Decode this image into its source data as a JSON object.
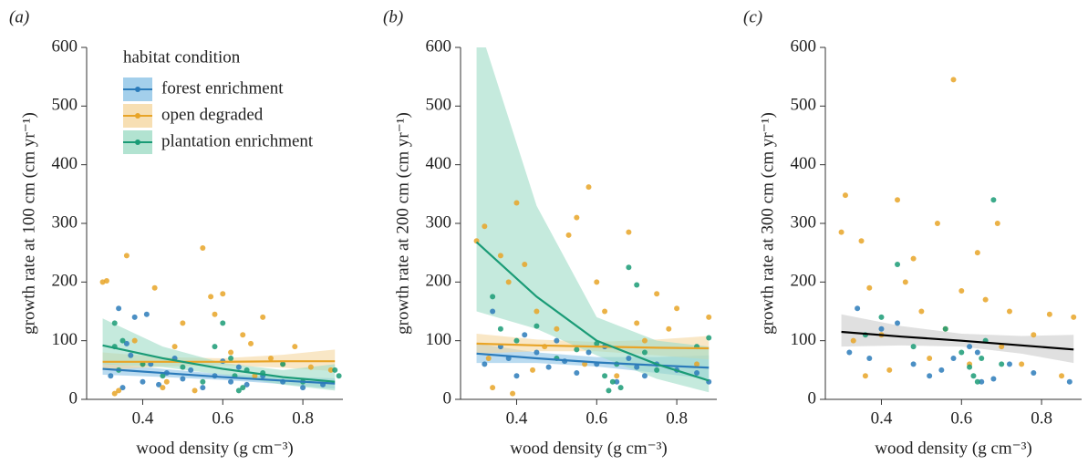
{
  "chart_data": [
    {
      "type": "scatter",
      "panel": "(a)",
      "ylabel": "growth rate at 100 cm (cm yr⁻¹)",
      "xlabel": "wood density (g cm⁻³)",
      "xlim": [
        0.26,
        0.9
      ],
      "ylim": [
        0,
        600
      ],
      "xticks": [
        0.4,
        0.6,
        0.8
      ],
      "yticks": [
        0,
        100,
        200,
        300,
        400,
        500,
        600
      ],
      "legend_title": "habitat condition",
      "legend": "upper left",
      "series": [
        {
          "name": "forest enrichment",
          "color": "#2b7bba",
          "band_color": "#8cc3e6",
          "x": [
            0.32,
            0.34,
            0.35,
            0.37,
            0.38,
            0.4,
            0.42,
            0.44,
            0.46,
            0.48,
            0.5,
            0.52,
            0.55,
            0.58,
            0.6,
            0.62,
            0.64,
            0.66,
            0.7,
            0.75,
            0.8,
            0.85,
            0.36,
            0.41
          ],
          "values": [
            40,
            155,
            20,
            75,
            140,
            30,
            60,
            25,
            45,
            70,
            35,
            50,
            20,
            40,
            65,
            30,
            55,
            25,
            40,
            30,
            20,
            25,
            95,
            145
          ],
          "fit": {
            "x": [
              0.3,
              0.45,
              0.6,
              0.75,
              0.88
            ],
            "values": [
              52,
              45,
              38,
              32,
              27
            ],
            "lower": [
              42,
              38,
              33,
              26,
              18
            ],
            "upper": [
              62,
              52,
              43,
              38,
              36
            ]
          }
        },
        {
          "name": "open degraded",
          "color": "#e8a427",
          "band_color": "#f5d7a0",
          "x": [
            0.3,
            0.31,
            0.33,
            0.36,
            0.38,
            0.4,
            0.43,
            0.45,
            0.48,
            0.5,
            0.53,
            0.55,
            0.57,
            0.6,
            0.62,
            0.65,
            0.67,
            0.7,
            0.72,
            0.75,
            0.78,
            0.82,
            0.87,
            0.34,
            0.46,
            0.58,
            0.68
          ],
          "values": [
            200,
            202,
            10,
            245,
            100,
            60,
            190,
            20,
            90,
            130,
            15,
            258,
            175,
            180,
            80,
            110,
            95,
            140,
            70,
            60,
            90,
            55,
            50,
            15,
            30,
            145,
            40
          ],
          "fit": {
            "x": [
              0.3,
              0.45,
              0.6,
              0.75,
              0.88
            ],
            "values": [
              64,
              64,
              64,
              65,
              65
            ],
            "lower": [
              50,
              56,
              58,
              54,
              48
            ],
            "upper": [
              80,
              72,
              70,
              76,
              85
            ]
          }
        },
        {
          "name": "plantation enrichment",
          "color": "#1a9b76",
          "band_color": "#9fdcc6",
          "x": [
            0.33,
            0.33,
            0.34,
            0.35,
            0.4,
            0.45,
            0.5,
            0.55,
            0.58,
            0.6,
            0.62,
            0.63,
            0.64,
            0.65,
            0.66,
            0.7,
            0.75,
            0.8,
            0.88,
            0.89
          ],
          "values": [
            130,
            90,
            50,
            100,
            60,
            40,
            55,
            30,
            90,
            130,
            70,
            40,
            15,
            20,
            50,
            45,
            60,
            30,
            50,
            40
          ],
          "fit": {
            "x": [
              0.3,
              0.45,
              0.6,
              0.75,
              0.88
            ],
            "values": [
              92,
              70,
              52,
              38,
              30
            ],
            "lower": [
              60,
              55,
              42,
              25,
              15
            ],
            "upper": [
              138,
              90,
              62,
              50,
              60
            ]
          }
        }
      ]
    },
    {
      "type": "scatter",
      "panel": "(b)",
      "ylabel": "growth rate at 200 cm (cm yr⁻¹)",
      "xlabel": "wood density (g cm⁻³)",
      "xlim": [
        0.26,
        0.9
      ],
      "ylim": [
        0,
        600
      ],
      "xticks": [
        0.4,
        0.6,
        0.8
      ],
      "yticks": [
        0,
        100,
        200,
        300,
        400,
        500,
        600
      ],
      "series": [
        {
          "color": "#2b7bba",
          "band_color": "#8cc3e6",
          "x": [
            0.32,
            0.34,
            0.36,
            0.38,
            0.4,
            0.42,
            0.45,
            0.48,
            0.5,
            0.52,
            0.55,
            0.58,
            0.6,
            0.62,
            0.65,
            0.68,
            0.7,
            0.72,
            0.75,
            0.8,
            0.85,
            0.88
          ],
          "values": [
            60,
            150,
            90,
            70,
            40,
            110,
            80,
            55,
            100,
            65,
            45,
            80,
            60,
            90,
            30,
            70,
            55,
            40,
            60,
            50,
            45,
            30
          ],
          "fit": {
            "x": [
              0.3,
              0.45,
              0.6,
              0.75,
              0.88
            ],
            "values": [
              78,
              70,
              63,
              58,
              54
            ],
            "lower": [
              62,
              62,
              56,
              45,
              35
            ],
            "upper": [
              95,
              80,
              72,
              72,
              75
            ]
          }
        },
        {
          "color": "#e8a427",
          "band_color": "#f5d7a0",
          "x": [
            0.3,
            0.32,
            0.34,
            0.36,
            0.38,
            0.4,
            0.42,
            0.45,
            0.47,
            0.5,
            0.53,
            0.55,
            0.57,
            0.58,
            0.6,
            0.62,
            0.65,
            0.68,
            0.7,
            0.72,
            0.75,
            0.78,
            0.8,
            0.85,
            0.88,
            0.33,
            0.39,
            0.44
          ],
          "values": [
            270,
            295,
            20,
            245,
            200,
            335,
            230,
            150,
            90,
            120,
            280,
            310,
            60,
            362,
            200,
            150,
            40,
            285,
            130,
            100,
            180,
            120,
            155,
            60,
            140,
            70,
            10,
            50
          ],
          "fit": {
            "x": [
              0.3,
              0.45,
              0.6,
              0.75,
              0.88
            ],
            "values": [
              95,
              92,
              90,
              88,
              87
            ],
            "lower": [
              78,
              82,
              82,
              75,
              68
            ],
            "upper": [
              112,
              102,
              98,
              102,
              108
            ]
          }
        },
        {
          "color": "#1a9b76",
          "band_color": "#9fdcc6",
          "x": [
            0.34,
            0.36,
            0.4,
            0.45,
            0.5,
            0.55,
            0.6,
            0.62,
            0.63,
            0.64,
            0.65,
            0.66,
            0.68,
            0.7,
            0.72,
            0.75,
            0.85,
            0.88
          ],
          "values": [
            175,
            120,
            100,
            125,
            70,
            85,
            95,
            40,
            15,
            30,
            60,
            20,
            225,
            195,
            80,
            50,
            90,
            105
          ],
          "fit": {
            "x": [
              0.3,
              0.45,
              0.6,
              0.75,
              0.88
            ],
            "values": [
              268,
              175,
              100,
              60,
              32
            ],
            "lower": [
              150,
              120,
              75,
              35,
              12
            ],
            "upper": [
              650,
              330,
              140,
              100,
              90
            ]
          }
        }
      ]
    },
    {
      "type": "scatter",
      "panel": "(c)",
      "ylabel": "growth rate at 300 cm (cm yr⁻¹)",
      "xlabel": "wood density (g cm⁻³)",
      "xlim": [
        0.26,
        0.9
      ],
      "ylim": [
        0,
        600
      ],
      "xticks": [
        0.4,
        0.6,
        0.8
      ],
      "yticks": [
        0,
        100,
        200,
        300,
        400,
        500,
        600
      ],
      "fit": {
        "color": "#000000",
        "band_color": "#cccccc",
        "x": [
          0.3,
          0.45,
          0.6,
          0.75,
          0.88
        ],
        "values": [
          115,
          107,
          100,
          92,
          85
        ],
        "lower": [
          90,
          92,
          90,
          78,
          62
        ],
        "upper": [
          145,
          125,
          112,
          108,
          110
        ]
      },
      "series": [
        {
          "color": "#2b7bba",
          "x": [
            0.32,
            0.34,
            0.37,
            0.4,
            0.44,
            0.48,
            0.52,
            0.55,
            0.58,
            0.62,
            0.64,
            0.65,
            0.68,
            0.72,
            0.78,
            0.87
          ],
          "values": [
            80,
            155,
            70,
            120,
            130,
            60,
            40,
            50,
            70,
            90,
            80,
            30,
            35,
            60,
            45,
            30
          ]
        },
        {
          "color": "#e8a427",
          "x": [
            0.3,
            0.31,
            0.33,
            0.35,
            0.37,
            0.4,
            0.42,
            0.44,
            0.46,
            0.5,
            0.52,
            0.54,
            0.56,
            0.58,
            0.6,
            0.62,
            0.66,
            0.69,
            0.7,
            0.72,
            0.75,
            0.78,
            0.82,
            0.85,
            0.88,
            0.36,
            0.48,
            0.64
          ],
          "values": [
            285,
            348,
            100,
            270,
            190,
            110,
            50,
            340,
            200,
            150,
            70,
            300,
            120,
            545,
            185,
            60,
            170,
            300,
            90,
            150,
            60,
            110,
            145,
            40,
            140,
            40,
            240,
            250
          ]
        },
        {
          "color": "#1a9b76",
          "x": [
            0.36,
            0.4,
            0.44,
            0.48,
            0.56,
            0.6,
            0.62,
            0.63,
            0.64,
            0.65,
            0.66,
            0.68,
            0.7
          ],
          "values": [
            110,
            140,
            230,
            90,
            120,
            80,
            55,
            40,
            30,
            70,
            100,
            340,
            60
          ]
        }
      ]
    }
  ]
}
